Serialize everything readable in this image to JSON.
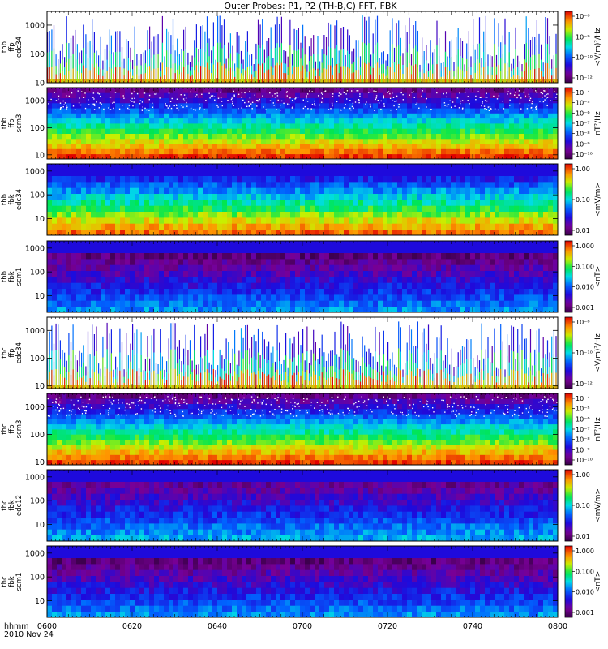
{
  "title": "Outer Probes: P1, P2 (TH-B,C) FFT, FBK",
  "chart_data": {
    "type": "heatmap",
    "x_axis": {
      "ticks": [
        "0600",
        "0620",
        "0640",
        "0700",
        "0720",
        "0740",
        "0800"
      ],
      "range": [
        "06:00",
        "08:00"
      ],
      "label_lines": [
        "hhmm",
        "2010 Nov 24"
      ]
    },
    "y_axis_scale": "log",
    "panels": [
      {
        "id": "thb-ffp-edc34",
        "label_lines": [
          "thb",
          "ffp",
          "edc34"
        ],
        "y_range": [
          10,
          3000
        ],
        "y_ticks": [
          "10",
          "100",
          "1000"
        ],
        "colorbar_label": "<V/m)²/Hz",
        "colorbar_ticks": [
          "10⁻⁸",
          "10⁻⁹",
          "10⁻¹⁰",
          "10⁻¹²"
        ],
        "style": "sparse",
        "noise": false
      },
      {
        "id": "thb-ffp-scm3",
        "label_lines": [
          "thb",
          "ffp",
          "scm3"
        ],
        "y_range": [
          7,
          3000
        ],
        "y_ticks": [
          "10",
          "100",
          "1000"
        ],
        "colorbar_label": "nT²/Hz",
        "colorbar_ticks": [
          "10⁻⁴",
          "10⁻⁵",
          "10⁻⁶",
          "10⁻⁷",
          "10⁻⁸",
          "10⁻⁹",
          "10⁻¹⁰"
        ],
        "style": "fft",
        "noise": true
      },
      {
        "id": "thb-fbk-edc34",
        "label_lines": [
          "thb",
          "fbk",
          "edc34"
        ],
        "y_range": [
          2,
          2000
        ],
        "y_ticks": [
          "10",
          "100",
          "1000"
        ],
        "colorbar_label": "<mV/m>",
        "colorbar_ticks": [
          "1.00",
          "0.10",
          "0.01"
        ],
        "style": "fbk-e",
        "noise": false
      },
      {
        "id": "thb-fbk-scm1",
        "label_lines": [
          "thb",
          "fbk",
          "scm1"
        ],
        "y_range": [
          2,
          2000
        ],
        "y_ticks": [
          "10",
          "100",
          "1000"
        ],
        "colorbar_label": "<nT>",
        "colorbar_ticks": [
          "1.000",
          "0.100",
          "0.010",
          "0.001"
        ],
        "style": "fbk-b",
        "noise": false
      },
      {
        "id": "thc-ffp-edc34",
        "label_lines": [
          "thc",
          "ffp",
          "edc34"
        ],
        "y_range": [
          8,
          3000
        ],
        "y_ticks": [
          "10",
          "100",
          "1000"
        ],
        "colorbar_label": "<V/m)²/Hz",
        "colorbar_ticks": [
          "10⁻⁸",
          "10⁻¹⁰",
          "10⁻¹²"
        ],
        "style": "sparse",
        "noise": false
      },
      {
        "id": "thc-ffp-scm3",
        "label_lines": [
          "thc",
          "ffp",
          "scm3"
        ],
        "y_range": [
          8,
          3000
        ],
        "y_ticks": [
          "10",
          "100",
          "1000"
        ],
        "colorbar_label": "nT²/Hz",
        "colorbar_ticks": [
          "10⁻⁴",
          "10⁻⁵",
          "10⁻⁶",
          "10⁻⁷",
          "10⁻⁸",
          "10⁻⁹",
          "10⁻¹⁰"
        ],
        "style": "fft",
        "noise": true
      },
      {
        "id": "thc-fbk-edc12",
        "label_lines": [
          "thc",
          "fbk",
          "edc12"
        ],
        "y_range": [
          2,
          2000
        ],
        "y_ticks": [
          "10",
          "100",
          "1000"
        ],
        "colorbar_label": "<mV/m>",
        "colorbar_ticks": [
          "1.00",
          "0.10",
          "0.01"
        ],
        "style": "fbk-e2",
        "noise": false
      },
      {
        "id": "thc-fbk-scm1",
        "label_lines": [
          "thc",
          "fbk",
          "scm1"
        ],
        "y_range": [
          2,
          2000
        ],
        "y_ticks": [
          "10",
          "100",
          "1000"
        ],
        "colorbar_label": "<nT>",
        "colorbar_ticks": [
          "1.000",
          "0.100",
          "0.010",
          "0.001"
        ],
        "style": "fbk-b",
        "noise": false
      }
    ]
  }
}
